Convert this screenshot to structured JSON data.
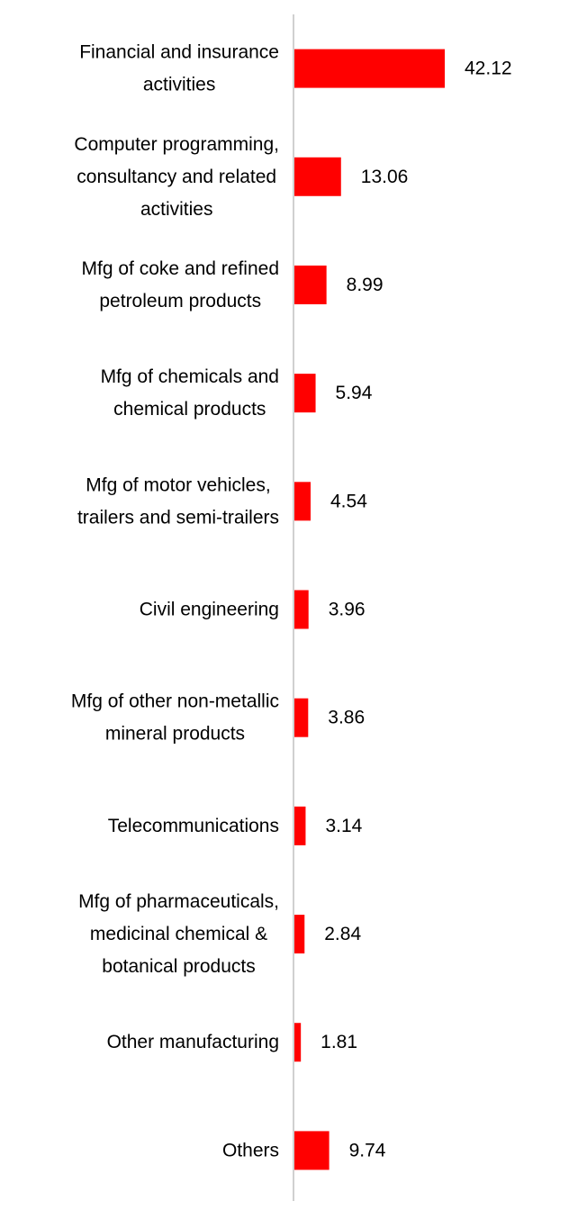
{
  "chart_data": {
    "type": "bar",
    "orientation": "horizontal",
    "categories": [
      [
        "Financial and insurance",
        "activities"
      ],
      [
        "Computer programming,",
        "consultancy and related",
        "activities"
      ],
      [
        "Mfg of coke and refined",
        "petroleum products"
      ],
      [
        "Mfg of chemicals and",
        "chemical products"
      ],
      [
        "Mfg of motor vehicles,",
        "trailers and semi-trailers"
      ],
      [
        "Civil engineering"
      ],
      [
        "Mfg of other non-metallic",
        "mineral products"
      ],
      [
        "Telecommunications"
      ],
      [
        "Mfg of pharmaceuticals,",
        "medicinal chemical &",
        "botanical products"
      ],
      [
        "Other manufacturing"
      ],
      [
        "Others"
      ]
    ],
    "values": [
      42.12,
      13.06,
      8.99,
      5.94,
      4.54,
      3.96,
      3.86,
      3.14,
      2.84,
      1.81,
      9.74
    ],
    "value_labels": [
      "42.12",
      "13.06",
      "8.99",
      "5.94",
      "4.54",
      "3.96",
      "3.86",
      "3.14",
      "2.84",
      "1.81",
      "9.74"
    ],
    "title": "",
    "xlabel": "",
    "ylabel": "",
    "xlim": [
      0,
      42.12
    ],
    "grid": false,
    "legend": "none",
    "colors": {
      "bar": "#ff0000",
      "axis": "#d0d0d0",
      "text": "#000000"
    }
  }
}
